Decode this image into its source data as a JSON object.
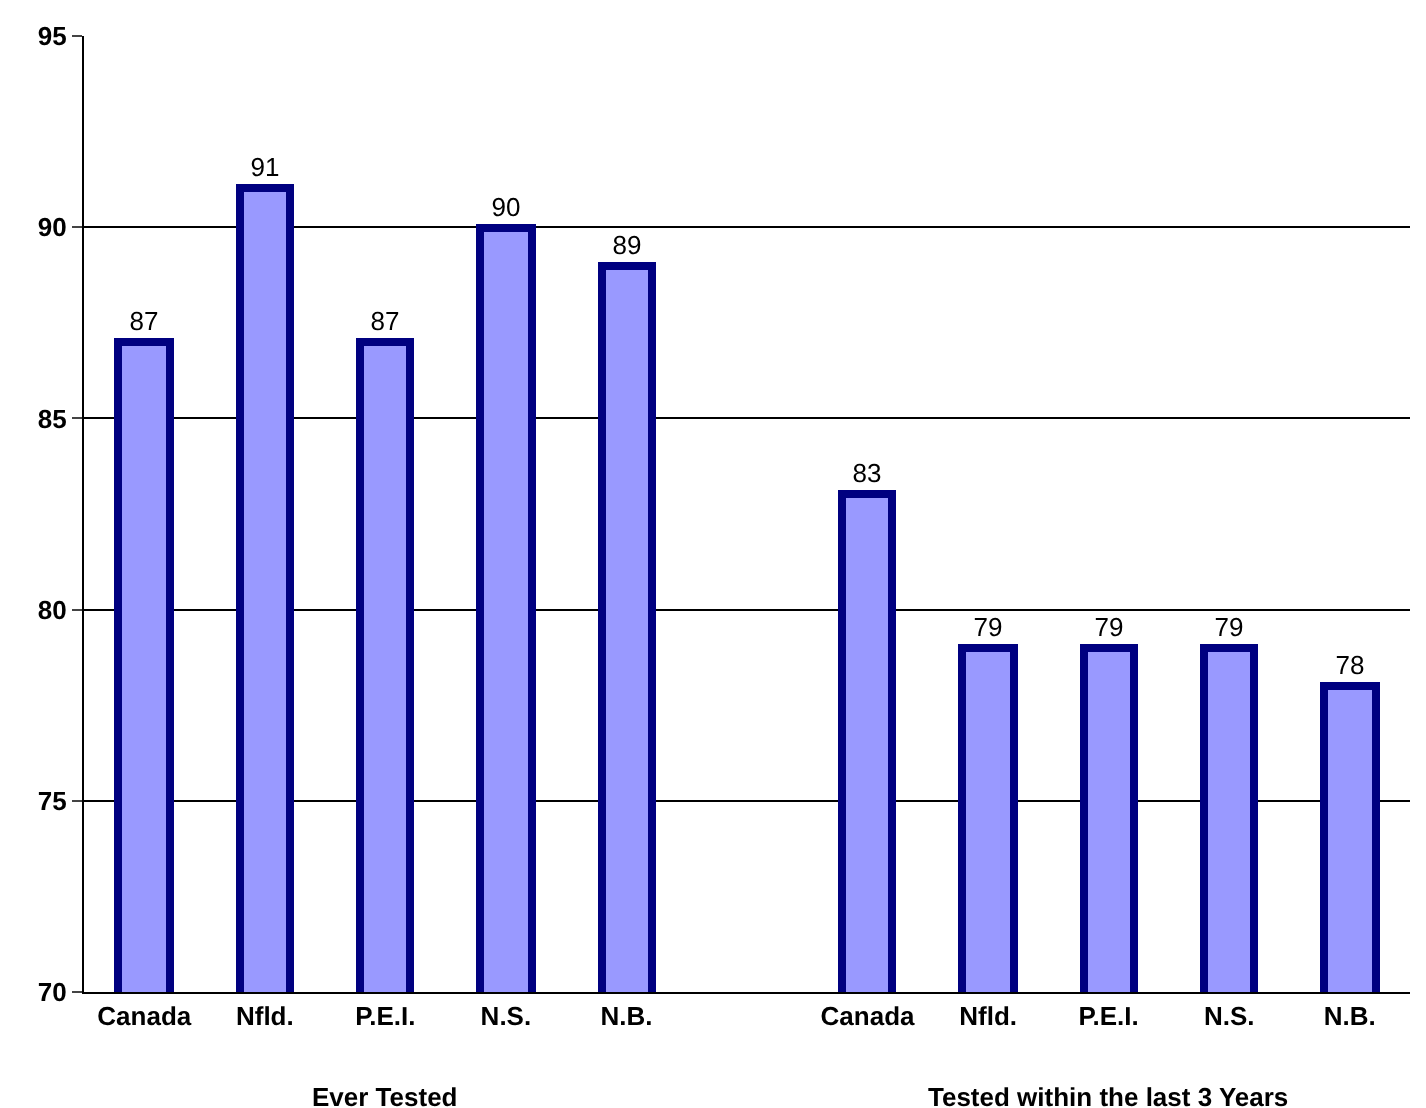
{
  "chart_data": {
    "type": "bar",
    "categories": [
      "Canada",
      "Nfld.",
      "P.E.I.",
      "N.S.",
      "N.B.",
      null,
      "Canada",
      "Nfld.",
      "P.E.I.",
      "N.S.",
      "N.B."
    ],
    "values": [
      87,
      91,
      87,
      90,
      89,
      null,
      83,
      79,
      79,
      79,
      78
    ],
    "color": "#9999ff",
    "ylim": [
      70,
      95
    ],
    "yticks": [
      70,
      75,
      80,
      85,
      90,
      95
    ],
    "grid": "y",
    "data_labels": true,
    "annotations": [
      "Ever Tested",
      "Tested within the last 3 Years"
    ]
  }
}
